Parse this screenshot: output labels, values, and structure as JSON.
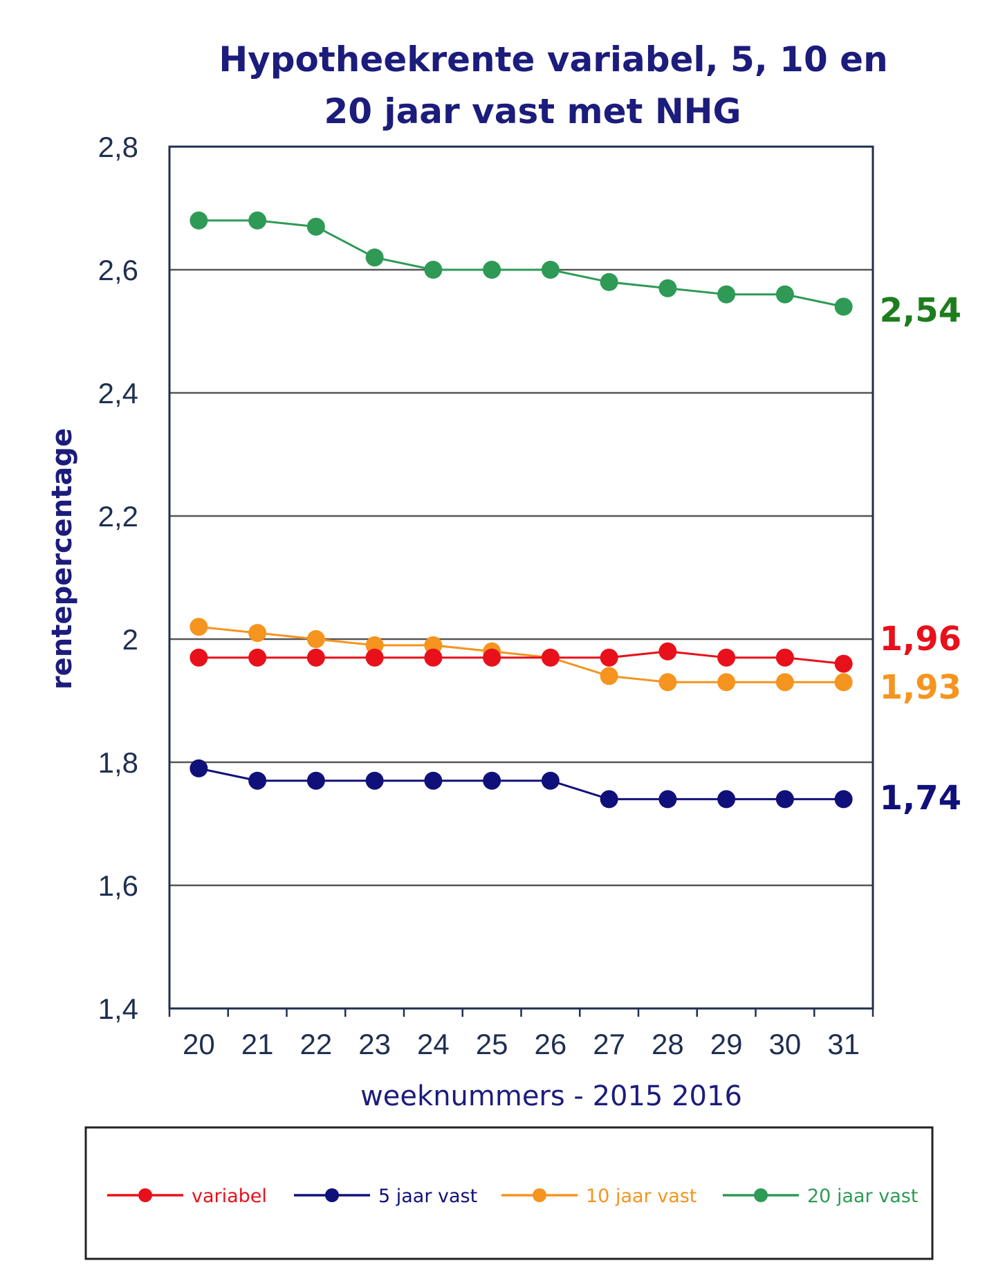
{
  "chart_data": {
    "type": "line",
    "title_line1": "Hypotheekrente variabel, 5, 10 en",
    "title_line2": "20 jaar vast met NHG",
    "ylabel": "rentepercentage",
    "xlabel": "weeknummers - 2015 2016",
    "ylim": [
      1.4,
      2.8
    ],
    "y_ticks": [
      {
        "value": 1.4,
        "label": "1,4"
      },
      {
        "value": 1.6,
        "label": "1,6"
      },
      {
        "value": 1.8,
        "label": "1,8"
      },
      {
        "value": 2.0,
        "label": "2"
      },
      {
        "value": 2.2,
        "label": "2,2"
      },
      {
        "value": 2.4,
        "label": "2,4"
      },
      {
        "value": 2.6,
        "label": "2,6"
      },
      {
        "value": 2.8,
        "label": "2,8"
      }
    ],
    "categories": [
      "20",
      "21",
      "22",
      "23",
      "24",
      "25",
      "26",
      "27",
      "28",
      "29",
      "30",
      "31"
    ],
    "grid": true,
    "legend_position": "bottom",
    "series": [
      {
        "name": "variabel",
        "color": "#e8101a",
        "values": [
          1.97,
          1.97,
          1.97,
          1.97,
          1.97,
          1.97,
          1.97,
          1.97,
          1.98,
          1.97,
          1.97,
          1.96
        ],
        "end_label": "1,96"
      },
      {
        "name": "5 jaar vast",
        "color": "#10107a",
        "values": [
          1.79,
          1.77,
          1.77,
          1.77,
          1.77,
          1.77,
          1.77,
          1.74,
          1.74,
          1.74,
          1.74,
          1.74
        ],
        "end_label": "1,74"
      },
      {
        "name": "10 jaar vast",
        "color": "#f5941e",
        "values": [
          2.02,
          2.01,
          2.0,
          1.99,
          1.99,
          1.98,
          1.97,
          1.94,
          1.93,
          1.93,
          1.93,
          1.93
        ],
        "end_label": "1,93"
      },
      {
        "name": "20 jaar vast",
        "color": "#2e9a55",
        "values": [
          2.68,
          2.68,
          2.67,
          2.62,
          2.6,
          2.6,
          2.6,
          2.58,
          2.57,
          2.56,
          2.56,
          2.54
        ],
        "end_label": "2,54"
      }
    ],
    "end_label_colors": [
      "#e8101a",
      "#10107a",
      "#f5941e",
      "#1d7d1d"
    ]
  }
}
